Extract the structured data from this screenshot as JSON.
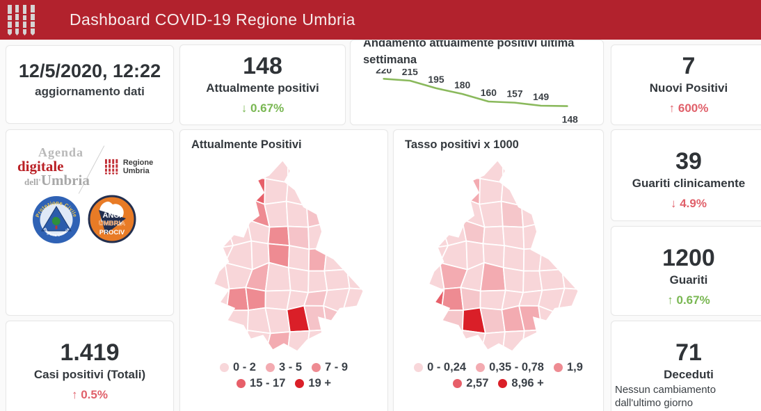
{
  "header": {
    "title": "Dashboard COVID-19 Regione Umbria"
  },
  "colors": {
    "header": "#b2222d",
    "green": "#79b752",
    "red": "#e0606a",
    "number": "#2f3337"
  },
  "cards": {
    "updated": {
      "value": "12/5/2020, 12:22",
      "label": "aggiornamento dati"
    },
    "attualmente_positivi": {
      "value": "148",
      "label": "Attualmente positivi",
      "direction": "down",
      "change": "0.67%",
      "trend_color": "green"
    },
    "nuovi_positivi": {
      "value": "7",
      "label": "Nuovi Positivi",
      "direction": "up",
      "change": "600%",
      "trend_color": "red"
    },
    "guariti_clinicamente": {
      "value": "39",
      "label": "Guariti clinicamente",
      "direction": "down",
      "change": "4.9%",
      "trend_color": "red"
    },
    "guariti": {
      "value": "1200",
      "label": "Guariti",
      "direction": "up",
      "change": "0.67%",
      "trend_color": "green"
    },
    "deceduti": {
      "value": "71",
      "label": "Deceduti",
      "note": "Nessun cambiamento dall'ultimo giorno"
    },
    "casi_totali": {
      "value": "1.419",
      "label": "Casi positivi (Totali)",
      "direction": "up",
      "change": "0.5%",
      "trend_color": "red"
    }
  },
  "logos": {
    "agenda": {
      "word1": "Agenda",
      "word2": "digitale",
      "word3_prefix": "dell'",
      "word3": "Umbria"
    },
    "regione_umbria": {
      "label": "Regione Umbria"
    },
    "protezione_civile": {
      "arc_top": "Protezione Civile",
      "arc_bottom": "Regione Umbria"
    },
    "anci": {
      "line1": "ANCI",
      "line2": "UMBRIA",
      "line3": "PROCIV"
    }
  },
  "chart_data": [
    {
      "type": "line",
      "title": "Andamento attualmente positivi ultima settimana",
      "values": [
        220,
        215,
        195,
        180,
        160,
        157,
        149,
        148
      ],
      "line_color": "#8ab95c",
      "data_labels": true,
      "grid": false,
      "legend_position": "none"
    },
    {
      "type": "choropleth",
      "title": "Attualmente Positivi",
      "seed": 7,
      "base_color": "#f8d6d9",
      "base_alt": "#f5c3c8",
      "legend": [
        {
          "label": "0 - 2",
          "color": "#f8d7da"
        },
        {
          "label": "3 - 5",
          "color": "#f3abb1"
        },
        {
          "label": "7 - 9",
          "color": "#ee8b92"
        },
        {
          "label": "15 - 17",
          "color": "#e75f69"
        },
        {
          "label": "19 +",
          "color": "#da1f28"
        }
      ],
      "cells": [
        [
          0,
          2,
          2
        ],
        [
          1,
          1,
          3
        ],
        [
          1,
          2,
          3
        ],
        [
          2,
          1,
          3
        ],
        [
          2,
          2,
          2
        ],
        [
          3,
          3,
          2
        ],
        [
          4,
          3,
          2
        ],
        [
          4,
          5,
          1
        ],
        [
          5,
          2,
          1
        ],
        [
          6,
          1,
          2
        ],
        [
          6,
          2,
          2
        ],
        [
          7,
          4,
          4
        ],
        [
          8,
          3,
          1
        ]
      ]
    },
    {
      "type": "choropleth",
      "title": "Tasso positivi x 1000",
      "seed": 7,
      "base_color": "#f8d6d9",
      "base_alt": "#f5c6ca",
      "legend": [
        {
          "label": "0 - 0,24",
          "color": "#f8d7da"
        },
        {
          "label": "0,35 - 0,78",
          "color": "#f3abb1"
        },
        {
          "label": "1,9",
          "color": "#ee8b92"
        },
        {
          "label": "2,57",
          "color": "#e75f69"
        },
        {
          "label": "8,96 +",
          "color": "#da1f28"
        }
      ],
      "cells": [
        [
          0,
          2,
          1
        ],
        [
          1,
          1,
          2
        ],
        [
          1,
          2,
          1
        ],
        [
          2,
          1,
          1
        ],
        [
          5,
          1,
          1
        ],
        [
          5,
          3,
          1
        ],
        [
          6,
          0,
          3
        ],
        [
          6,
          1,
          2
        ],
        [
          7,
          2,
          4
        ],
        [
          7,
          4,
          1
        ],
        [
          7,
          5,
          1
        ]
      ]
    }
  ]
}
